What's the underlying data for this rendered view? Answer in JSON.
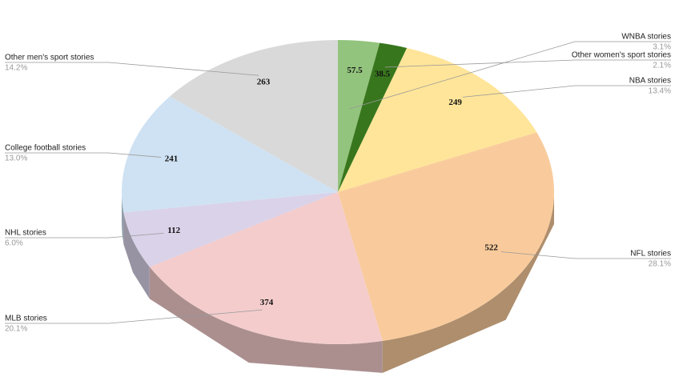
{
  "chart_data": {
    "type": "pie",
    "pie_3d": true,
    "categories": [
      "WNBA stories",
      "Other women's sport stories",
      "NBA stories",
      "NFL stories",
      "MLB stories",
      "NHL stories",
      "College football stories",
      "Other men's sport stories"
    ],
    "values": [
      57.5,
      38.5,
      249,
      522,
      374,
      112,
      241,
      263
    ],
    "percent_labels": [
      "3.1%",
      "2.1%",
      "13.4%",
      "28.1%",
      "20.1%",
      "6.0%",
      "13.0%",
      "14.2%"
    ],
    "colors": [
      "#93c47d",
      "#38761d",
      "#ffe599",
      "#f9cb9c",
      "#f4cccc",
      "#d9d2e9",
      "#cfe2f3",
      "#d9d9d9"
    ]
  }
}
